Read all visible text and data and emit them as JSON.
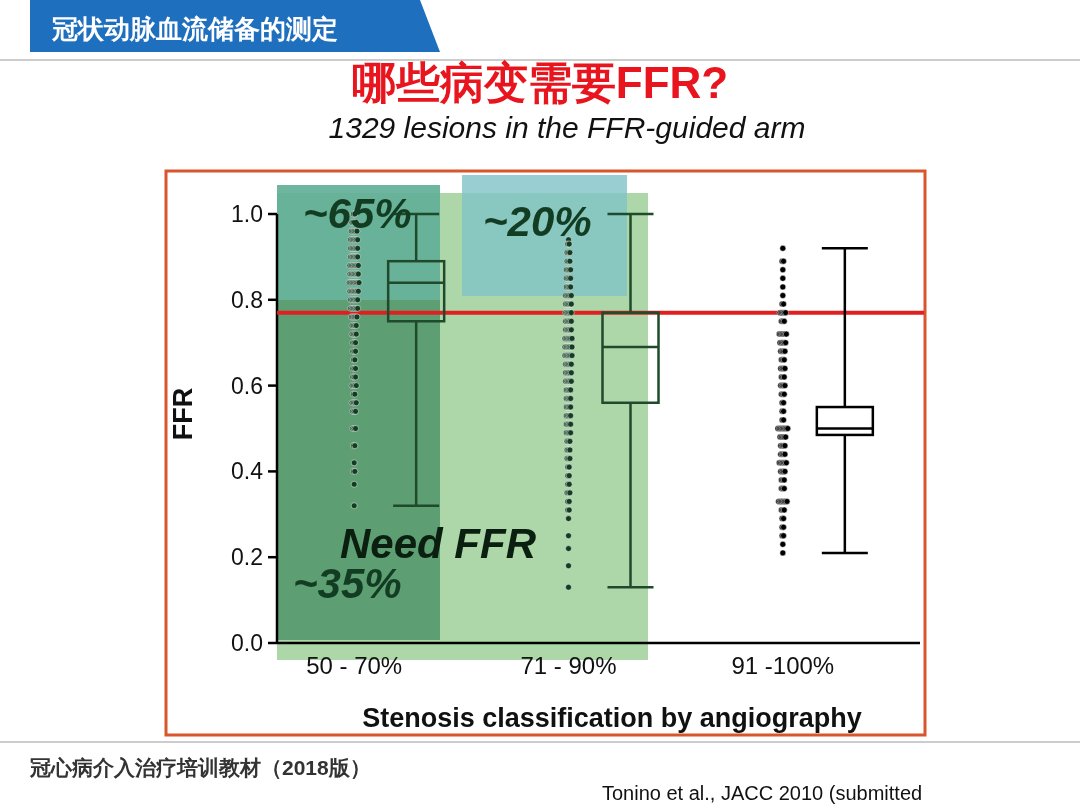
{
  "chart_data": {
    "type": "box",
    "title": "哪些病变需要FFR?",
    "subtitle": "1329 lesions in the FFR-guided arm",
    "xlabel": "Stenosis classification by angiography",
    "ylabel": "FFR",
    "categories": [
      "50 - 70%",
      "71 - 90%",
      "91 -100%"
    ],
    "ylim": [
      0,
      1.0
    ],
    "yticks": [
      {
        "value": 0,
        "label": "0.0"
      },
      {
        "value": 0.2,
        "label": "0.2"
      },
      {
        "value": 0.4,
        "label": "0.4"
      },
      {
        "value": 0.6,
        "label": "0.6"
      },
      {
        "value": 0.8,
        "label": "0.8"
      },
      {
        "value": 1.0,
        "label": "1.0"
      }
    ],
    "grid": false,
    "ref_lines": [
      {
        "axis": "y",
        "value": 0.77,
        "color": "#e02020"
      }
    ],
    "annotations": [
      "冠状动脉血流储备的测定",
      "~65%",
      "~20%",
      "Need FFR",
      "~35%",
      "冠心病介入治疗培训教材（2018版）",
      "Tonino et al., JACC 2010 (submitted"
    ],
    "series": [
      {
        "type": "box",
        "colors": [
          "#1f4a2c",
          "#1f4a2c",
          "#000000"
        ],
        "boxes": [
          {
            "low": 0.32,
            "q1": 0.75,
            "median": 0.84,
            "q3": 0.89,
            "high": 1.0
          },
          {
            "low": 0.13,
            "q1": 0.56,
            "median": 0.69,
            "q3": 0.77,
            "high": 1.0
          },
          {
            "low": 0.21,
            "q1": 0.485,
            "median": 0.5,
            "q3": 0.55,
            "high": 0.92
          }
        ]
      },
      {
        "type": "scatter",
        "color": "#123d22",
        "x": [
          "50 - 70%",
          "50 - 70%",
          "50 - 70%",
          "50 - 70%",
          "50 - 70%",
          "50 - 70%",
          "50 - 70%",
          "50 - 70%",
          "50 - 70%",
          "50 - 70%",
          "50 - 70%",
          "50 - 70%",
          "50 - 70%",
          "50 - 70%",
          "50 - 70%",
          "50 - 70%",
          "50 - 70%",
          "50 - 70%",
          "50 - 70%",
          "50 - 70%",
          "50 - 70%",
          "50 - 70%",
          "50 - 70%",
          "50 - 70%",
          "50 - 70%",
          "50 - 70%",
          "50 - 70%",
          "50 - 70%",
          "50 - 70%",
          "50 - 70%",
          "50 - 70%",
          "50 - 70%",
          "50 - 70%",
          "50 - 70%",
          "50 - 70%",
          "50 - 70%",
          "50 - 70%",
          "50 - 70%",
          "50 - 70%",
          "50 - 70%",
          "50 - 70%",
          "50 - 70%",
          "50 - 70%",
          "50 - 70%",
          "50 - 70%",
          "50 - 70%",
          "50 - 70%",
          "50 - 70%",
          "50 - 70%",
          "50 - 70%",
          "50 - 70%",
          "50 - 70%",
          "50 - 70%",
          "50 - 70%",
          "50 - 70%",
          "50 - 70%",
          "50 - 70%",
          "50 - 70%",
          "50 - 70%",
          "50 - 70%",
          "50 - 70%",
          "50 - 70%",
          "50 - 70%",
          "50 - 70%",
          "50 - 70%",
          "50 - 70%",
          "50 - 70%",
          "50 - 70%",
          "50 - 70%",
          "50 - 70%",
          "50 - 70%",
          "50 - 70%",
          "50 - 70%",
          "50 - 70%",
          "50 - 70%",
          "50 - 70%",
          "50 - 70%",
          "50 - 70%",
          "50 - 70%",
          "50 - 70%",
          "50 - 70%",
          "50 - 70%",
          "50 - 70%",
          "50 - 70%",
          "50 - 70%",
          "50 - 70%",
          "50 - 70%",
          "50 - 70%",
          "50 - 70%",
          "50 - 70%",
          "50 - 70%",
          "50 - 70%",
          "50 - 70%",
          "50 - 70%",
          "50 - 70%",
          "50 - 70%",
          "50 - 70%",
          "50 - 70%",
          "50 - 70%",
          "50 - 70%",
          "50 - 70%",
          "50 - 70%",
          "50 - 70%",
          "50 - 70%",
          "50 - 70%",
          "50 - 70%",
          "50 - 70%",
          "50 - 70%",
          "50 - 70%",
          "50 - 70%",
          "50 - 70%",
          "50 - 70%",
          "50 - 70%",
          "50 - 70%",
          "50 - 70%",
          "50 - 70%",
          "50 - 70%",
          "50 - 70%",
          "50 - 70%",
          "50 - 70%"
        ],
        "values": [
          1.0,
          1.0,
          0.98,
          0.98,
          0.98,
          0.98,
          0.96,
          0.96,
          0.96,
          0.96,
          0.96,
          0.94,
          0.94,
          0.94,
          0.94,
          0.94,
          0.94,
          0.92,
          0.92,
          0.92,
          0.92,
          0.92,
          0.92,
          0.9,
          0.9,
          0.9,
          0.9,
          0.9,
          0.9,
          0.88,
          0.88,
          0.88,
          0.88,
          0.88,
          0.88,
          0.88,
          0.86,
          0.86,
          0.86,
          0.86,
          0.86,
          0.86,
          0.86,
          0.84,
          0.84,
          0.84,
          0.84,
          0.84,
          0.84,
          0.84,
          0.84,
          0.82,
          0.82,
          0.82,
          0.82,
          0.82,
          0.82,
          0.82,
          0.8,
          0.8,
          0.8,
          0.8,
          0.8,
          0.8,
          0.78,
          0.78,
          0.78,
          0.78,
          0.78,
          0.78,
          0.76,
          0.76,
          0.76,
          0.76,
          0.76,
          0.74,
          0.74,
          0.74,
          0.74,
          0.72,
          0.72,
          0.72,
          0.72,
          0.7,
          0.7,
          0.7,
          0.68,
          0.68,
          0.68,
          0.66,
          0.66,
          0.64,
          0.64,
          0.64,
          0.62,
          0.62,
          0.62,
          0.6,
          0.6,
          0.6,
          0.6,
          0.58,
          0.58,
          0.56,
          0.56,
          0.56,
          0.56,
          0.54,
          0.54,
          0.54,
          0.5,
          0.5,
          0.5,
          0.46,
          0.46,
          0.42,
          0.4,
          0.4,
          0.37,
          0.32
        ]
      },
      {
        "type": "scatter",
        "color": "#123d22",
        "x": [
          "71 - 90%",
          "71 - 90%",
          "71 - 90%",
          "71 - 90%",
          "71 - 90%",
          "71 - 90%",
          "71 - 90%",
          "71 - 90%",
          "71 - 90%",
          "71 - 90%",
          "71 - 90%",
          "71 - 90%",
          "71 - 90%",
          "71 - 90%",
          "71 - 90%",
          "71 - 90%",
          "71 - 90%",
          "71 - 90%",
          "71 - 90%",
          "71 - 90%",
          "71 - 90%",
          "71 - 90%",
          "71 - 90%",
          "71 - 90%",
          "71 - 90%",
          "71 - 90%",
          "71 - 90%",
          "71 - 90%",
          "71 - 90%",
          "71 - 90%",
          "71 - 90%",
          "71 - 90%",
          "71 - 90%",
          "71 - 90%",
          "71 - 90%",
          "71 - 90%",
          "71 - 90%",
          "71 - 90%",
          "71 - 90%",
          "71 - 90%",
          "71 - 90%",
          "71 - 90%",
          "71 - 90%",
          "71 - 90%",
          "71 - 90%",
          "71 - 90%",
          "71 - 90%",
          "71 - 90%",
          "71 - 90%",
          "71 - 90%",
          "71 - 90%",
          "71 - 90%",
          "71 - 90%",
          "71 - 90%",
          "71 - 90%",
          "71 - 90%",
          "71 - 90%",
          "71 - 90%",
          "71 - 90%",
          "71 - 90%",
          "71 - 90%",
          "71 - 90%",
          "71 - 90%",
          "71 - 90%",
          "71 - 90%",
          "71 - 90%",
          "71 - 90%",
          "71 - 90%",
          "71 - 90%",
          "71 - 90%",
          "71 - 90%",
          "71 - 90%",
          "71 - 90%",
          "71 - 90%",
          "71 - 90%",
          "71 - 90%",
          "71 - 90%",
          "71 - 90%",
          "71 - 90%",
          "71 - 90%",
          "71 - 90%",
          "71 - 90%",
          "71 - 90%",
          "71 - 90%",
          "71 - 90%",
          "71 - 90%",
          "71 - 90%",
          "71 - 90%",
          "71 - 90%",
          "71 - 90%",
          "71 - 90%",
          "71 - 90%",
          "71 - 90%",
          "71 - 90%",
          "71 - 90%",
          "71 - 90%",
          "71 - 90%",
          "71 - 90%",
          "71 - 90%",
          "71 - 90%",
          "71 - 90%",
          "71 - 90%",
          "71 - 90%",
          "71 - 90%",
          "71 - 90%",
          "71 - 90%",
          "71 - 90%",
          "71 - 90%",
          "71 - 90%",
          "71 - 90%",
          "71 - 90%",
          "71 - 90%",
          "71 - 90%",
          "71 - 90%",
          "71 - 90%",
          "71 - 90%",
          "71 - 90%",
          "71 - 90%",
          "71 - 90%",
          "71 - 90%",
          "71 - 90%",
          "71 - 90%",
          "71 - 90%",
          "71 - 90%",
          "71 - 90%",
          "71 - 90%",
          "71 - 90%",
          "71 - 90%",
          "71 - 90%",
          "71 - 90%"
        ],
        "values": [
          0.94,
          0.93,
          0.93,
          0.91,
          0.91,
          0.91,
          0.89,
          0.89,
          0.89,
          0.87,
          0.87,
          0.87,
          0.87,
          0.85,
          0.85,
          0.85,
          0.85,
          0.83,
          0.83,
          0.83,
          0.83,
          0.81,
          0.81,
          0.81,
          0.81,
          0.81,
          0.79,
          0.79,
          0.79,
          0.79,
          0.79,
          0.77,
          0.77,
          0.77,
          0.77,
          0.77,
          0.75,
          0.75,
          0.75,
          0.75,
          0.75,
          0.73,
          0.73,
          0.73,
          0.73,
          0.73,
          0.71,
          0.71,
          0.71,
          0.71,
          0.71,
          0.71,
          0.69,
          0.69,
          0.69,
          0.69,
          0.69,
          0.69,
          0.67,
          0.67,
          0.67,
          0.67,
          0.67,
          0.67,
          0.65,
          0.65,
          0.65,
          0.65,
          0.65,
          0.63,
          0.63,
          0.63,
          0.63,
          0.63,
          0.61,
          0.61,
          0.61,
          0.61,
          0.61,
          0.59,
          0.59,
          0.59,
          0.59,
          0.57,
          0.57,
          0.57,
          0.57,
          0.55,
          0.55,
          0.55,
          0.55,
          0.53,
          0.53,
          0.53,
          0.53,
          0.51,
          0.51,
          0.51,
          0.51,
          0.49,
          0.49,
          0.49,
          0.49,
          0.47,
          0.47,
          0.47,
          0.45,
          0.45,
          0.45,
          0.43,
          0.43,
          0.43,
          0.41,
          0.41,
          0.39,
          0.39,
          0.37,
          0.37,
          0.35,
          0.35,
          0.35,
          0.33,
          0.33,
          0.31,
          0.31,
          0.29,
          0.25,
          0.22,
          0.18,
          0.13
        ]
      },
      {
        "type": "scatter",
        "color": "#000000",
        "x": [
          "91 -100%",
          "91 -100%",
          "91 -100%",
          "91 -100%",
          "91 -100%",
          "91 -100%",
          "91 -100%",
          "91 -100%",
          "91 -100%",
          "91 -100%",
          "91 -100%",
          "91 -100%",
          "91 -100%",
          "91 -100%",
          "91 -100%",
          "91 -100%",
          "91 -100%",
          "91 -100%",
          "91 -100%",
          "91 -100%",
          "91 -100%",
          "91 -100%",
          "91 -100%",
          "91 -100%",
          "91 -100%",
          "91 -100%",
          "91 -100%",
          "91 -100%",
          "91 -100%",
          "91 -100%",
          "91 -100%",
          "91 -100%",
          "91 -100%",
          "91 -100%",
          "91 -100%",
          "91 -100%",
          "91 -100%",
          "91 -100%",
          "91 -100%",
          "91 -100%",
          "91 -100%",
          "91 -100%",
          "91 -100%",
          "91 -100%",
          "91 -100%",
          "91 -100%",
          "91 -100%",
          "91 -100%",
          "91 -100%",
          "91 -100%",
          "91 -100%",
          "91 -100%",
          "91 -100%",
          "91 -100%",
          "91 -100%",
          "91 -100%",
          "91 -100%",
          "91 -100%",
          "91 -100%",
          "91 -100%",
          "91 -100%",
          "91 -100%",
          "91 -100%",
          "91 -100%",
          "91 -100%",
          "91 -100%",
          "91 -100%",
          "91 -100%",
          "91 -100%",
          "91 -100%",
          "91 -100%",
          "91 -100%",
          "91 -100%",
          "91 -100%",
          "91 -100%",
          "91 -100%",
          "91 -100%",
          "91 -100%",
          "91 -100%",
          "91 -100%",
          "91 -100%",
          "91 -100%",
          "91 -100%",
          "91 -100%",
          "91 -100%",
          "91 -100%",
          "91 -100%",
          "91 -100%",
          "91 -100%",
          "91 -100%",
          "91 -100%",
          "91 -100%",
          "91 -100%",
          "91 -100%",
          "91 -100%",
          "91 -100%",
          "91 -100%",
          "91 -100%",
          "91 -100%",
          "91 -100%",
          "91 -100%",
          "91 -100%",
          "91 -100%",
          "91 -100%",
          "91 -100%",
          "91 -100%",
          "91 -100%",
          "91 -100%",
          "91 -100%",
          "91 -100%"
        ],
        "values": [
          0.92,
          0.89,
          0.89,
          0.87,
          0.85,
          0.83,
          0.81,
          0.79,
          0.79,
          0.77,
          0.77,
          0.77,
          0.77,
          0.77,
          0.75,
          0.75,
          0.75,
          0.72,
          0.72,
          0.72,
          0.72,
          0.72,
          0.72,
          0.7,
          0.7,
          0.7,
          0.7,
          0.7,
          0.68,
          0.68,
          0.68,
          0.68,
          0.66,
          0.66,
          0.66,
          0.64,
          0.64,
          0.64,
          0.64,
          0.62,
          0.62,
          0.62,
          0.6,
          0.6,
          0.6,
          0.6,
          0.58,
          0.58,
          0.58,
          0.56,
          0.56,
          0.54,
          0.54,
          0.52,
          0.52,
          0.5,
          0.5,
          0.5,
          0.5,
          0.5,
          0.5,
          0.5,
          0.5,
          0.48,
          0.48,
          0.48,
          0.48,
          0.48,
          0.46,
          0.46,
          0.46,
          0.46,
          0.44,
          0.44,
          0.44,
          0.44,
          0.42,
          0.42,
          0.42,
          0.42,
          0.42,
          0.42,
          0.4,
          0.4,
          0.4,
          0.4,
          0.38,
          0.38,
          0.38,
          0.36,
          0.36,
          0.36,
          0.33,
          0.33,
          0.33,
          0.33,
          0.33,
          0.33,
          0.33,
          0.31,
          0.31,
          0.31,
          0.29,
          0.29,
          0.27,
          0.27,
          0.25,
          0.25,
          0.23,
          0.21
        ]
      }
    ]
  }
}
